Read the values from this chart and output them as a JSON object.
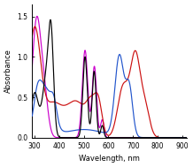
{
  "title": "",
  "xlabel": "Wavelength, nm",
  "ylabel": "Absorbance",
  "xlim": [
    290,
    920
  ],
  "ylim": [
    0.0,
    1.65
  ],
  "yticks": [
    0.0,
    0.5,
    1.0,
    1.5
  ],
  "xticks": [
    300,
    400,
    500,
    600,
    700,
    800,
    900
  ],
  "background_color": "#ffffff",
  "colors": {
    "black": "#000000",
    "blue": "#2255cc",
    "red": "#cc1111",
    "magenta": "#cc00cc"
  },
  "figsize": [
    2.18,
    1.89
  ],
  "dpi": 100
}
